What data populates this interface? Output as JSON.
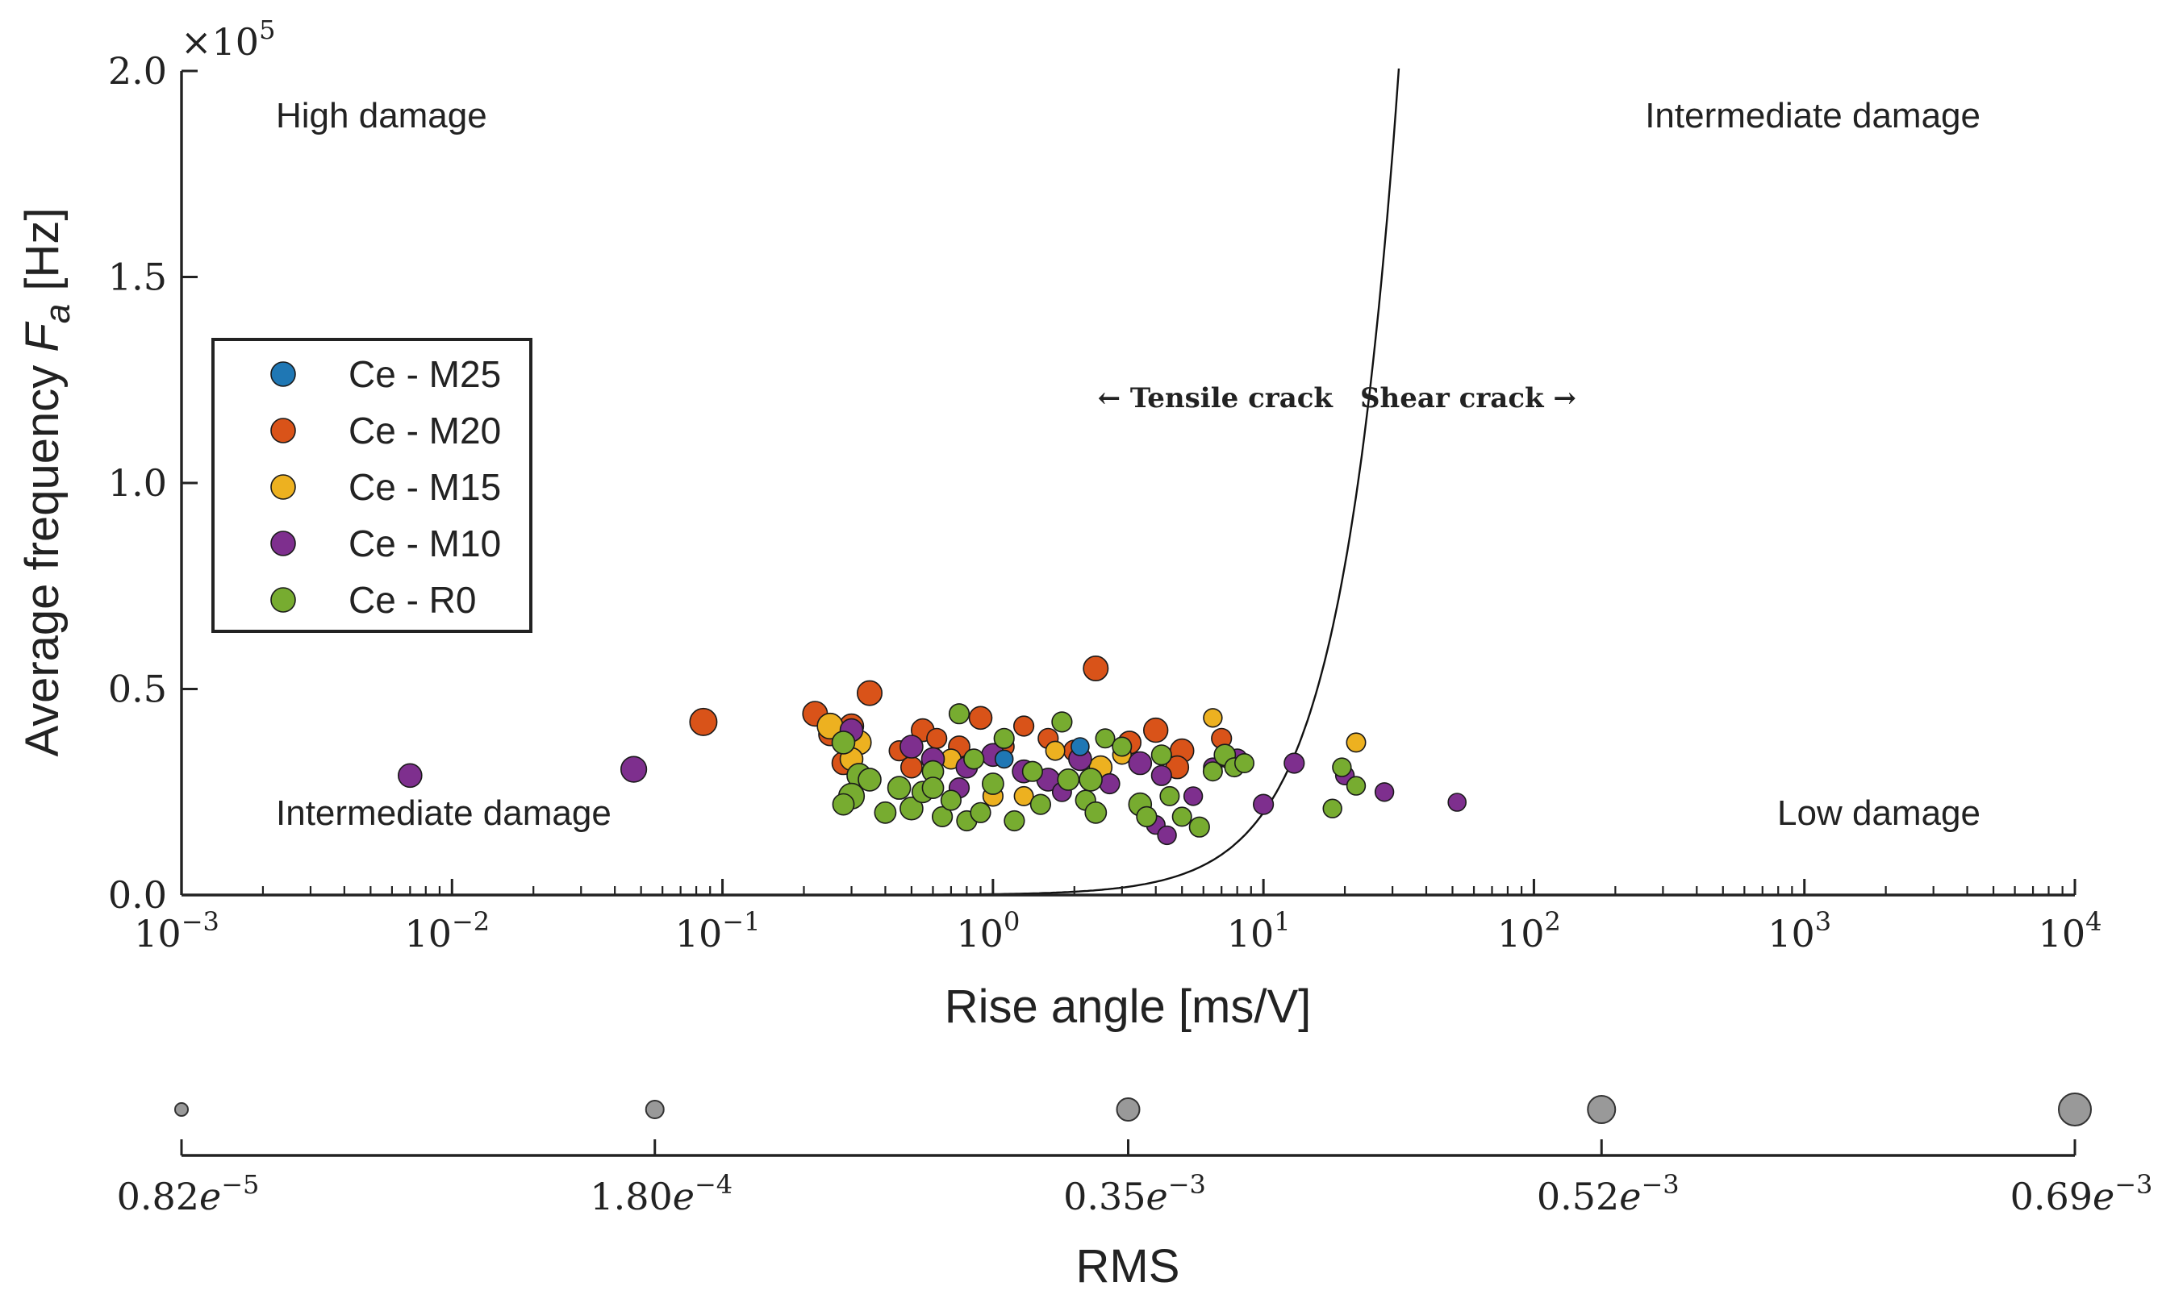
{
  "chart_data": {
    "type": "scatter",
    "title": "",
    "xlabel": "Rise angle [ms/V]",
    "ylabel_prefix": "Average frequency",
    "ylabel_symbol": "F",
    "ylabel_subscript": "a",
    "ylabel_unit": "[Hz]",
    "xscale": "log",
    "xlim": [
      0.001,
      10000
    ],
    "ylim": [
      0,
      200000
    ],
    "y_offset_text": "×10",
    "y_offset_exp": "5",
    "y_ticks": [
      {
        "value": 0,
        "label": "0.0"
      },
      {
        "value": 50000,
        "label": "0.5"
      },
      {
        "value": 100000,
        "label": "1.0"
      },
      {
        "value": 150000,
        "label": "1.5"
      },
      {
        "value": 200000,
        "label": "2.0"
      }
    ],
    "x_ticks": [
      {
        "value": 0.001,
        "base": "10",
        "exp": "−3"
      },
      {
        "value": 0.01,
        "base": "10",
        "exp": "−2"
      },
      {
        "value": 0.1,
        "base": "10",
        "exp": "−1"
      },
      {
        "value": 1,
        "base": "10",
        "exp": "0"
      },
      {
        "value": 10,
        "base": "10",
        "exp": "1"
      },
      {
        "value": 100,
        "base": "10",
        "exp": "2"
      },
      {
        "value": 1000,
        "base": "10",
        "exp": "3"
      },
      {
        "value": 10000,
        "base": "10",
        "exp": "4"
      }
    ],
    "regions": {
      "top_left": "High damage",
      "top_right": "Intermediate damage",
      "bottom_left": "Intermediate damage",
      "bottom_right": "Low damage"
    },
    "crack_labels": {
      "tensile": "← Tensile crack",
      "shear": "Shear crack →"
    },
    "boundary_curve": {
      "description": "y = k · x²",
      "k": 200,
      "x_range": [
        0.1,
        34
      ]
    },
    "legend": {
      "position": "center-left",
      "entries": [
        {
          "label": "Ce - M25",
          "color": "#1f77b4"
        },
        {
          "label": "Ce - M20",
          "color": "#d95319"
        },
        {
          "label": "Ce - M15",
          "color": "#edb120"
        },
        {
          "label": "Ce - M10",
          "color": "#7e2f8e"
        },
        {
          "label": "Ce - R0",
          "color": "#77ac30"
        }
      ]
    },
    "series": [
      {
        "name": "Ce - M25",
        "color": "#1f77b4",
        "points": [
          [
            2.1,
            36000,
            0.00018
          ],
          [
            1.1,
            33000,
            0.00018
          ]
        ]
      },
      {
        "name": "Ce - M20",
        "color": "#d95319",
        "points": [
          [
            0.085,
            42000,
            0.0005
          ],
          [
            0.22,
            44000,
            0.00042
          ],
          [
            0.35,
            49000,
            0.00042
          ],
          [
            2.4,
            55000,
            0.00042
          ],
          [
            0.25,
            39000,
            0.00035
          ],
          [
            0.3,
            41000,
            0.0004
          ],
          [
            0.32,
            37000,
            0.00035
          ],
          [
            0.28,
            32000,
            0.00035
          ],
          [
            0.55,
            40000,
            0.00035
          ],
          [
            0.62,
            38000,
            0.00025
          ],
          [
            0.75,
            36000,
            0.0003
          ],
          [
            0.9,
            43000,
            0.00035
          ],
          [
            1.3,
            41000,
            0.00025
          ],
          [
            1.6,
            38000,
            0.00025
          ],
          [
            2.0,
            35000,
            0.0003
          ],
          [
            3.2,
            37000,
            0.00035
          ],
          [
            4.0,
            40000,
            0.0004
          ],
          [
            5.0,
            35000,
            0.00038
          ],
          [
            4.8,
            31000,
            0.00035
          ],
          [
            7.0,
            38000,
            0.00025
          ],
          [
            7.5,
            33000,
            0.00025
          ],
          [
            0.45,
            35000,
            0.00025
          ],
          [
            1.1,
            36000,
            0.00025
          ],
          [
            0.5,
            31000,
            0.0003
          ]
        ]
      },
      {
        "name": "Ce - M15",
        "color": "#edb120",
        "points": [
          [
            0.25,
            41000,
            0.00045
          ],
          [
            0.32,
            37000,
            0.0004
          ],
          [
            0.3,
            33000,
            0.00035
          ],
          [
            1.0,
            24000,
            0.00025
          ],
          [
            1.3,
            24000,
            0.00022
          ],
          [
            2.5,
            31000,
            0.00035
          ],
          [
            6.5,
            43000,
            0.0002
          ],
          [
            22,
            37000,
            0.00022
          ],
          [
            0.7,
            33000,
            0.00025
          ],
          [
            1.7,
            35000,
            0.00022
          ],
          [
            3.0,
            34000,
            0.0002
          ]
        ]
      },
      {
        "name": "Ce - M10",
        "color": "#7e2f8e",
        "points": [
          [
            0.007,
            29000,
            0.00038
          ],
          [
            0.047,
            30500,
            0.00045
          ],
          [
            0.3,
            40000,
            0.00035
          ],
          [
            0.5,
            36000,
            0.00035
          ],
          [
            0.6,
            33000,
            0.00035
          ],
          [
            0.8,
            31000,
            0.0003
          ],
          [
            1.0,
            34000,
            0.00035
          ],
          [
            1.3,
            30000,
            0.00035
          ],
          [
            1.6,
            28000,
            0.00035
          ],
          [
            2.1,
            33000,
            0.00035
          ],
          [
            2.7,
            27000,
            0.00025
          ],
          [
            3.5,
            32000,
            0.00035
          ],
          [
            4.2,
            29000,
            0.00025
          ],
          [
            4.0,
            17000,
            0.0002
          ],
          [
            4.4,
            14500,
            0.0002
          ],
          [
            5.5,
            24000,
            0.0002
          ],
          [
            6.5,
            31000,
            0.0002
          ],
          [
            8.0,
            33000,
            0.00025
          ],
          [
            10.0,
            22000,
            0.00025
          ],
          [
            13.0,
            32000,
            0.00025
          ],
          [
            20.0,
            29000,
            0.0002
          ],
          [
            28.0,
            25000,
            0.0002
          ],
          [
            52.0,
            22500,
            0.00018
          ],
          [
            0.35,
            28000,
            0.0003
          ],
          [
            0.75,
            26000,
            0.00025
          ],
          [
            1.8,
            25000,
            0.00022
          ]
        ]
      },
      {
        "name": "Ce - R0",
        "color": "#77ac30",
        "points": [
          [
            0.28,
            37000,
            0.00035
          ],
          [
            0.32,
            29000,
            0.0004
          ],
          [
            0.3,
            24000,
            0.00045
          ],
          [
            0.28,
            22000,
            0.0003
          ],
          [
            0.35,
            28000,
            0.00035
          ],
          [
            0.4,
            20000,
            0.0003
          ],
          [
            0.45,
            26000,
            0.00035
          ],
          [
            0.5,
            21000,
            0.00035
          ],
          [
            0.55,
            25000,
            0.0003
          ],
          [
            0.6,
            30000,
            0.0003
          ],
          [
            0.65,
            19000,
            0.00025
          ],
          [
            0.7,
            23000,
            0.00025
          ],
          [
            0.75,
            44000,
            0.00025
          ],
          [
            0.8,
            18000,
            0.00025
          ],
          [
            0.85,
            33000,
            0.00025
          ],
          [
            0.9,
            20000,
            0.00025
          ],
          [
            1.0,
            27000,
            0.0003
          ],
          [
            1.1,
            38000,
            0.00025
          ],
          [
            1.2,
            18000,
            0.00025
          ],
          [
            1.4,
            30000,
            0.00025
          ],
          [
            1.5,
            22000,
            0.00025
          ],
          [
            1.8,
            42000,
            0.00025
          ],
          [
            1.9,
            28000,
            0.0003
          ],
          [
            2.2,
            23000,
            0.00025
          ],
          [
            2.3,
            28000,
            0.00035
          ],
          [
            2.4,
            20000,
            0.0003
          ],
          [
            2.6,
            38000,
            0.00022
          ],
          [
            3.0,
            36000,
            0.00022
          ],
          [
            3.5,
            22000,
            0.00035
          ],
          [
            3.7,
            19000,
            0.00025
          ],
          [
            4.2,
            34000,
            0.00025
          ],
          [
            4.5,
            24000,
            0.00022
          ],
          [
            5.0,
            19000,
            0.00022
          ],
          [
            5.8,
            16500,
            0.00025
          ],
          [
            6.5,
            30000,
            0.00022
          ],
          [
            7.2,
            34000,
            0.0003
          ],
          [
            7.8,
            31000,
            0.00022
          ],
          [
            8.5,
            32000,
            0.00022
          ],
          [
            18.0,
            21000,
            0.0002
          ],
          [
            19.5,
            31000,
            0.0002
          ],
          [
            22.0,
            26500,
            0.0002
          ],
          [
            0.6,
            26000,
            0.0003
          ]
        ]
      }
    ],
    "size_legend": {
      "label": "RMS",
      "entries": [
        {
          "value": 8.2e-06,
          "mant": "0.82",
          "exp": "−5"
        },
        {
          "value": 0.00018,
          "mant": "1.80",
          "exp": "−4"
        },
        {
          "value": 0.00035,
          "mant": "0.35",
          "exp": "−3"
        },
        {
          "value": 0.00052,
          "mant": "0.52",
          "exp": "−3"
        },
        {
          "value": 0.00069,
          "mant": "0.69",
          "exp": "−3"
        }
      ]
    }
  }
}
